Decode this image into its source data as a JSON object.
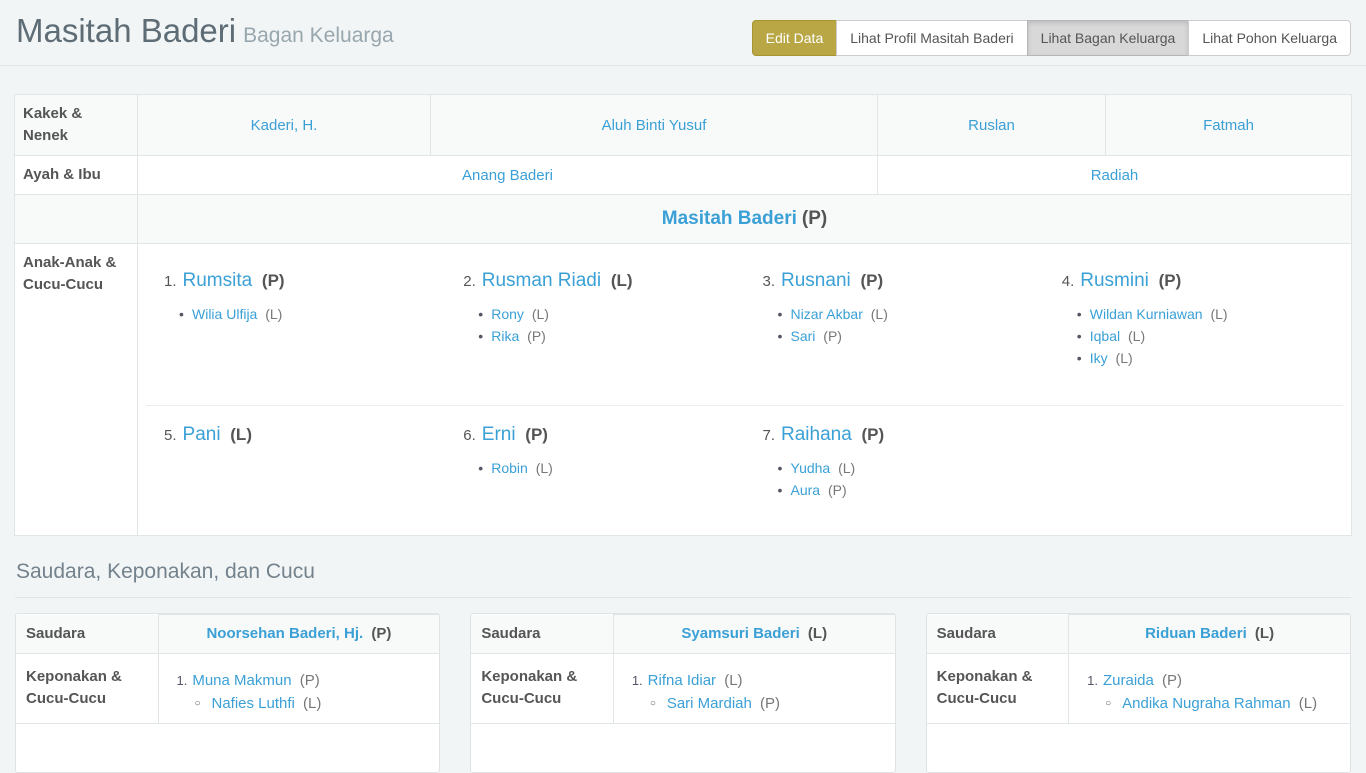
{
  "page": {
    "title": "Masitah Baderi",
    "subtitle": "Bagan Keluarga"
  },
  "toolbar": {
    "buttons": [
      {
        "label": "Edit Data",
        "style": "gold",
        "active": false
      },
      {
        "label": "Lihat Profil Masitah Baderi",
        "style": "default",
        "active": false
      },
      {
        "label": "Lihat Bagan Keluarga",
        "style": "default",
        "active": true
      },
      {
        "label": "Lihat Pohon Keluarga",
        "style": "default",
        "active": false
      }
    ]
  },
  "family_table": {
    "grandparents_label": "Kakek & Nenek",
    "grandparents": [
      "Kaderi, H.",
      "Aluh Binti Yusuf",
      "Ruslan",
      "Fatmah"
    ],
    "parents_label": "Ayah & Ibu",
    "parents": [
      "Anang Baderi",
      "Radiah"
    ],
    "person": {
      "name": "Masitah Baderi",
      "gender": "(P)"
    },
    "children_label": "Anak-Anak & Cucu-Cucu",
    "children": [
      {
        "num": "1.",
        "name": "Rumsita",
        "gender": "(P)",
        "grandchildren": [
          {
            "name": "Wilia Ulfija",
            "gender": "(L)"
          }
        ]
      },
      {
        "num": "2.",
        "name": "Rusman Riadi",
        "gender": "(L)",
        "grandchildren": [
          {
            "name": "Rony",
            "gender": "(L)"
          },
          {
            "name": "Rika",
            "gender": "(P)"
          }
        ]
      },
      {
        "num": "3.",
        "name": "Rusnani",
        "gender": "(P)",
        "grandchildren": [
          {
            "name": "Nizar Akbar",
            "gender": "(L)"
          },
          {
            "name": "Sari",
            "gender": "(P)"
          }
        ]
      },
      {
        "num": "4.",
        "name": "Rusmini",
        "gender": "(P)",
        "grandchildren": [
          {
            "name": "Wildan Kurniawan",
            "gender": "(L)"
          },
          {
            "name": "Iqbal",
            "gender": "(L)"
          },
          {
            "name": "Iky",
            "gender": "(L)"
          }
        ]
      },
      {
        "num": "5.",
        "name": "Pani",
        "gender": "(L)",
        "grandchildren": []
      },
      {
        "num": "6.",
        "name": "Erni",
        "gender": "(P)",
        "grandchildren": [
          {
            "name": "Robin",
            "gender": "(L)"
          }
        ]
      },
      {
        "num": "7.",
        "name": "Raihana",
        "gender": "(P)",
        "grandchildren": [
          {
            "name": "Yudha",
            "gender": "(L)"
          },
          {
            "name": "Aura",
            "gender": "(P)"
          }
        ]
      }
    ]
  },
  "siblings_section": {
    "heading": "Saudara, Keponakan, dan Cucu",
    "sibling_label": "Saudara",
    "nephews_label": "Keponakan & Cucu-Cucu",
    "cards": [
      {
        "name": "Noorsehan Baderi, Hj.",
        "gender": "(P)",
        "nephews": [
          {
            "num": "1.",
            "name": "Muna Makmun",
            "gender": "(P)",
            "children": [
              {
                "name": "Nafies Luthfi",
                "gender": "(L)"
              }
            ]
          }
        ]
      },
      {
        "name": "Syamsuri Baderi",
        "gender": "(L)",
        "nephews": [
          {
            "num": "1.",
            "name": "Rifna Idiar",
            "gender": "(L)",
            "children": [
              {
                "name": "Sari Mardiah",
                "gender": "(P)"
              }
            ]
          }
        ]
      },
      {
        "name": "Riduan Baderi",
        "gender": "(L)",
        "nephews": [
          {
            "num": "1.",
            "name": "Zuraida",
            "gender": "(P)",
            "children": [
              {
                "name": "Andika Nugraha Rahman",
                "gender": "(L)"
              }
            ]
          }
        ]
      }
    ]
  },
  "colors": {
    "link": "#3aa0d6",
    "gold": "#b9a745",
    "pagebg": "#f2f5f6",
    "stripe": "#f8f9f9",
    "text": "#555555",
    "muted": "#777777"
  }
}
